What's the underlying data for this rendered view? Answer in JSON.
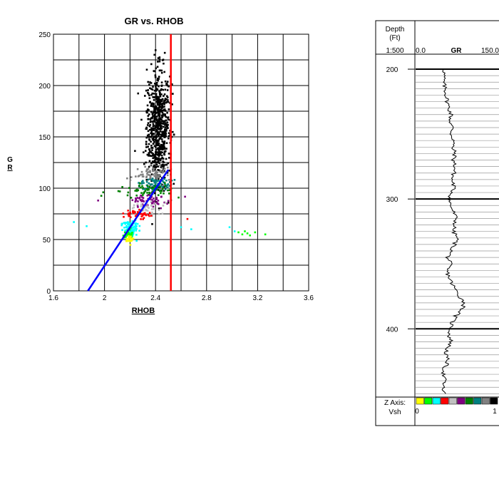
{
  "chart_data": [
    {
      "type": "scatter",
      "title": "GR vs. RHOB",
      "xlabel": "RHOB",
      "ylabel": "GR",
      "xlim": [
        1.6,
        3.6
      ],
      "ylim": [
        0,
        250
      ],
      "x_ticks": [
        "1.6",
        "2",
        "2.4",
        "2.8",
        "3.2",
        "3.6"
      ],
      "y_ticks": [
        "0",
        "50",
        "100",
        "150",
        "200",
        "250"
      ],
      "grid": true,
      "clusters": [
        {
          "color": "#000000",
          "cx": 2.42,
          "cy": 160,
          "sx": 0.045,
          "sy": 28,
          "n": 700
        },
        {
          "color": "#808080",
          "cx": 2.38,
          "cy": 114,
          "sx": 0.06,
          "sy": 4,
          "n": 70
        },
        {
          "color": "#008080",
          "cx": 2.4,
          "cy": 104,
          "sx": 0.07,
          "sy": 4,
          "n": 70
        },
        {
          "color": "#008000",
          "cx": 2.33,
          "cy": 98,
          "sx": 0.11,
          "sy": 3,
          "n": 60
        },
        {
          "color": "#800080",
          "cx": 2.35,
          "cy": 88,
          "sx": 0.08,
          "sy": 3,
          "n": 60
        },
        {
          "color": "#c0c0c0",
          "cx": 2.33,
          "cy": 80,
          "sx": 0.06,
          "sy": 3,
          "n": 40
        },
        {
          "color": "#ff0000",
          "cx": 2.27,
          "cy": 74,
          "sx": 0.06,
          "sy": 2.5,
          "n": 45
        },
        {
          "color": "#00ffff",
          "cx": 2.2,
          "cy": 62,
          "sx": 0.03,
          "sy": 4,
          "n": 90
        },
        {
          "color": "#00ff00",
          "cx": 2.18,
          "cy": 55,
          "sx": 0.02,
          "sy": 2,
          "n": 30
        },
        {
          "color": "#ffff00",
          "cx": 2.2,
          "cy": 50,
          "sx": 0.02,
          "sy": 2,
          "n": 18
        }
      ],
      "outliers": [
        {
          "x": 1.76,
          "y": 67,
          "color": "#00ffff"
        },
        {
          "x": 1.8,
          "y": 77,
          "color": "#c0c0c0"
        },
        {
          "x": 1.86,
          "y": 63,
          "color": "#00ffff"
        },
        {
          "x": 1.95,
          "y": 88,
          "color": "#800080"
        },
        {
          "x": 1.99,
          "y": 96,
          "color": "#008000"
        },
        {
          "x": 2.65,
          "y": 70,
          "color": "#ff0000"
        },
        {
          "x": 2.6,
          "y": 62,
          "color": "#00ffff"
        },
        {
          "x": 2.68,
          "y": 60,
          "color": "#00ffff"
        },
        {
          "x": 2.98,
          "y": 62,
          "color": "#00ffff"
        },
        {
          "x": 3.02,
          "y": 58,
          "color": "#00ffff"
        },
        {
          "x": 3.05,
          "y": 57,
          "color": "#00ff00"
        },
        {
          "x": 3.08,
          "y": 55,
          "color": "#00ff00"
        },
        {
          "x": 3.1,
          "y": 58,
          "color": "#00ff00"
        },
        {
          "x": 3.12,
          "y": 56,
          "color": "#00ff00"
        },
        {
          "x": 3.14,
          "y": 54,
          "color": "#00ff00"
        },
        {
          "x": 3.18,
          "y": 57,
          "color": "#00ff00"
        },
        {
          "x": 3.26,
          "y": 55,
          "color": "#00ff00"
        }
      ],
      "red_line": {
        "x": 2.52,
        "y1": 0,
        "y2": 250,
        "color": "#ff0000"
      },
      "blue_line": {
        "x1": 1.87,
        "y1": 0,
        "x2": 2.5,
        "y2": 118,
        "color": "#0000ff"
      }
    },
    {
      "type": "line",
      "track": "GR",
      "depth_header": [
        "Depth",
        "(Ft)",
        "1:500"
      ],
      "scale_min": "0.0",
      "scale_max": "150.0",
      "xlim": [
        0,
        150
      ],
      "ylim": [
        189,
        452
      ],
      "depth_ticks": [
        "200",
        "300",
        "400"
      ],
      "gr_profile": [
        [
          200,
          52
        ],
        [
          205,
          51
        ],
        [
          210,
          50
        ],
        [
          215,
          53
        ],
        [
          220,
          55
        ],
        [
          225,
          57
        ],
        [
          230,
          60
        ],
        [
          235,
          64
        ],
        [
          240,
          62
        ],
        [
          245,
          66
        ],
        [
          250,
          64
        ],
        [
          255,
          69
        ],
        [
          260,
          66
        ],
        [
          265,
          71
        ],
        [
          270,
          68
        ],
        [
          275,
          71
        ],
        [
          280,
          69
        ],
        [
          285,
          65
        ],
        [
          290,
          69
        ],
        [
          295,
          66
        ],
        [
          300,
          60
        ],
        [
          305,
          63
        ],
        [
          310,
          68
        ],
        [
          315,
          73
        ],
        [
          320,
          70
        ],
        [
          325,
          68
        ],
        [
          330,
          75
        ],
        [
          335,
          70
        ],
        [
          340,
          64
        ],
        [
          345,
          58
        ],
        [
          350,
          62
        ],
        [
          355,
          56
        ],
        [
          360,
          60
        ],
        [
          365,
          65
        ],
        [
          370,
          72
        ],
        [
          375,
          79
        ],
        [
          380,
          88
        ],
        [
          385,
          84
        ],
        [
          390,
          72
        ],
        [
          395,
          66
        ],
        [
          400,
          63
        ],
        [
          405,
          60
        ],
        [
          410,
          64
        ],
        [
          415,
          57
        ],
        [
          420,
          54
        ],
        [
          425,
          58
        ],
        [
          430,
          52
        ],
        [
          435,
          50
        ],
        [
          440,
          52
        ],
        [
          445,
          49
        ],
        [
          450,
          51
        ]
      ],
      "z_axis_label": "Z Axis:",
      "vsh_label": "Vsh",
      "vsh_min": "0",
      "vsh_max": "1",
      "z_colors": [
        "#ffff00",
        "#00ff00",
        "#00ffff",
        "#ff0000",
        "#c0c0c0",
        "#800080",
        "#008000",
        "#008080",
        "#808080",
        "#000000"
      ]
    }
  ]
}
